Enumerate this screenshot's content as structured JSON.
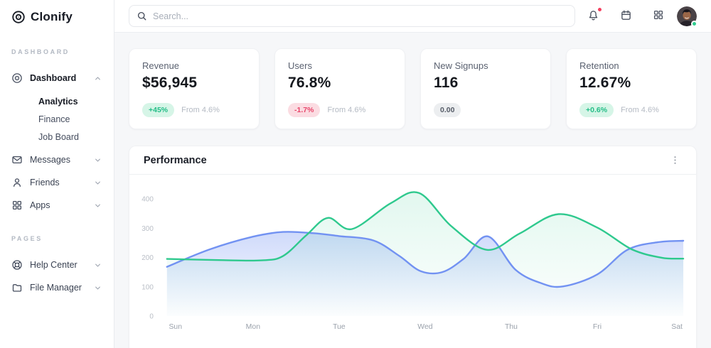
{
  "app": {
    "name": "Clonify",
    "logo_icon": "target-icon"
  },
  "topbar": {
    "search": {
      "placeholder": "Search...",
      "icon": "search-icon"
    },
    "actions": [
      {
        "name": "notifications",
        "icon": "bell-icon",
        "badge_dot": true
      },
      {
        "name": "calendar",
        "icon": "calendar-icon",
        "badge_dot": false
      },
      {
        "name": "apps-grid",
        "icon": "grid-icon",
        "badge_dot": false
      }
    ],
    "avatar": {
      "status": "online",
      "status_color": "#2fcb8e"
    }
  },
  "sidebar": {
    "sections": [
      {
        "label": "DASHBOARD",
        "items": [
          {
            "label": "Dashboard",
            "icon": "target-icon",
            "bold": true,
            "chevron": "up",
            "children": [
              {
                "label": "Analytics",
                "active": true
              },
              {
                "label": "Finance",
                "active": false
              },
              {
                "label": "Job Board",
                "active": false
              }
            ]
          },
          {
            "label": "Messages",
            "icon": "mail-icon",
            "bold": false,
            "chevron": "down"
          },
          {
            "label": "Friends",
            "icon": "user-icon",
            "bold": false,
            "chevron": "down"
          },
          {
            "label": "Apps",
            "icon": "grid-icon",
            "bold": false,
            "chevron": "down"
          }
        ]
      },
      {
        "label": "PAGES",
        "items": [
          {
            "label": "Help Center",
            "icon": "lifebuoy-icon",
            "bold": false,
            "chevron": "down"
          },
          {
            "label": "File Manager",
            "icon": "folder-icon",
            "bold": false,
            "chevron": "down"
          }
        ]
      }
    ]
  },
  "stat_cards": [
    {
      "title": "Revenue",
      "value": "$56,945",
      "badge": "+45%",
      "badge_type": "positive",
      "note": "From 4.6%"
    },
    {
      "title": "Users",
      "value": "76.8%",
      "badge": "-1.7%",
      "badge_type": "negative",
      "note": "From 4.6%"
    },
    {
      "title": "New Signups",
      "value": "116",
      "badge": "0.00",
      "badge_type": "neutral",
      "note": ""
    },
    {
      "title": "Retention",
      "value": "12.67%",
      "badge": "+0.6%",
      "badge_type": "positive",
      "note": "From 4.6%"
    }
  ],
  "performance": {
    "title": "Performance",
    "menu_icon": "kebab-menu-icon"
  },
  "colors": {
    "accent_green": "#2fc98e",
    "accent_blue": "#7292f2",
    "positive": "#23bd87",
    "negative": "#e8456a",
    "notification_dot": "#f43f5e",
    "online_status": "#2fcb8e"
  },
  "chart_data": {
    "type": "area",
    "title": "Performance",
    "x_labels": [
      "Sun",
      "Mon",
      "Tue",
      "Wed",
      "Thu",
      "Fri",
      "Sat"
    ],
    "y_ticks": [
      0,
      100,
      200,
      300,
      400
    ],
    "ylim": [
      0,
      440
    ],
    "grid": false,
    "legend": "none",
    "series": [
      {
        "name": "series-green",
        "color": "#2fc98e",
        "fill_opacity": 0.14,
        "points": [
          [
            0,
            195
          ],
          [
            0.6,
            191
          ],
          [
            1.1,
            190
          ],
          [
            1.35,
            205
          ],
          [
            1.62,
            276
          ],
          [
            1.87,
            335
          ],
          [
            2.15,
            297
          ],
          [
            2.6,
            385
          ],
          [
            2.93,
            420
          ],
          [
            3.3,
            308
          ],
          [
            3.72,
            226
          ],
          [
            4.1,
            282
          ],
          [
            4.55,
            348
          ],
          [
            5.0,
            302
          ],
          [
            5.4,
            228
          ],
          [
            5.75,
            199
          ],
          [
            6,
            196
          ]
        ]
      },
      {
        "name": "series-blue",
        "color": "#7292f2",
        "fill_opacity": 0.34,
        "points": [
          [
            0,
            168
          ],
          [
            0.5,
            228
          ],
          [
            1,
            271
          ],
          [
            1.35,
            287
          ],
          [
            1.7,
            283
          ],
          [
            2,
            273
          ],
          [
            2.4,
            258
          ],
          [
            2.7,
            205
          ],
          [
            2.95,
            153
          ],
          [
            3.2,
            150
          ],
          [
            3.45,
            196
          ],
          [
            3.73,
            272
          ],
          [
            4.05,
            158
          ],
          [
            4.35,
            112
          ],
          [
            4.6,
            101
          ],
          [
            5,
            142
          ],
          [
            5.35,
            226
          ],
          [
            5.7,
            252
          ],
          [
            6,
            257
          ]
        ]
      }
    ]
  }
}
